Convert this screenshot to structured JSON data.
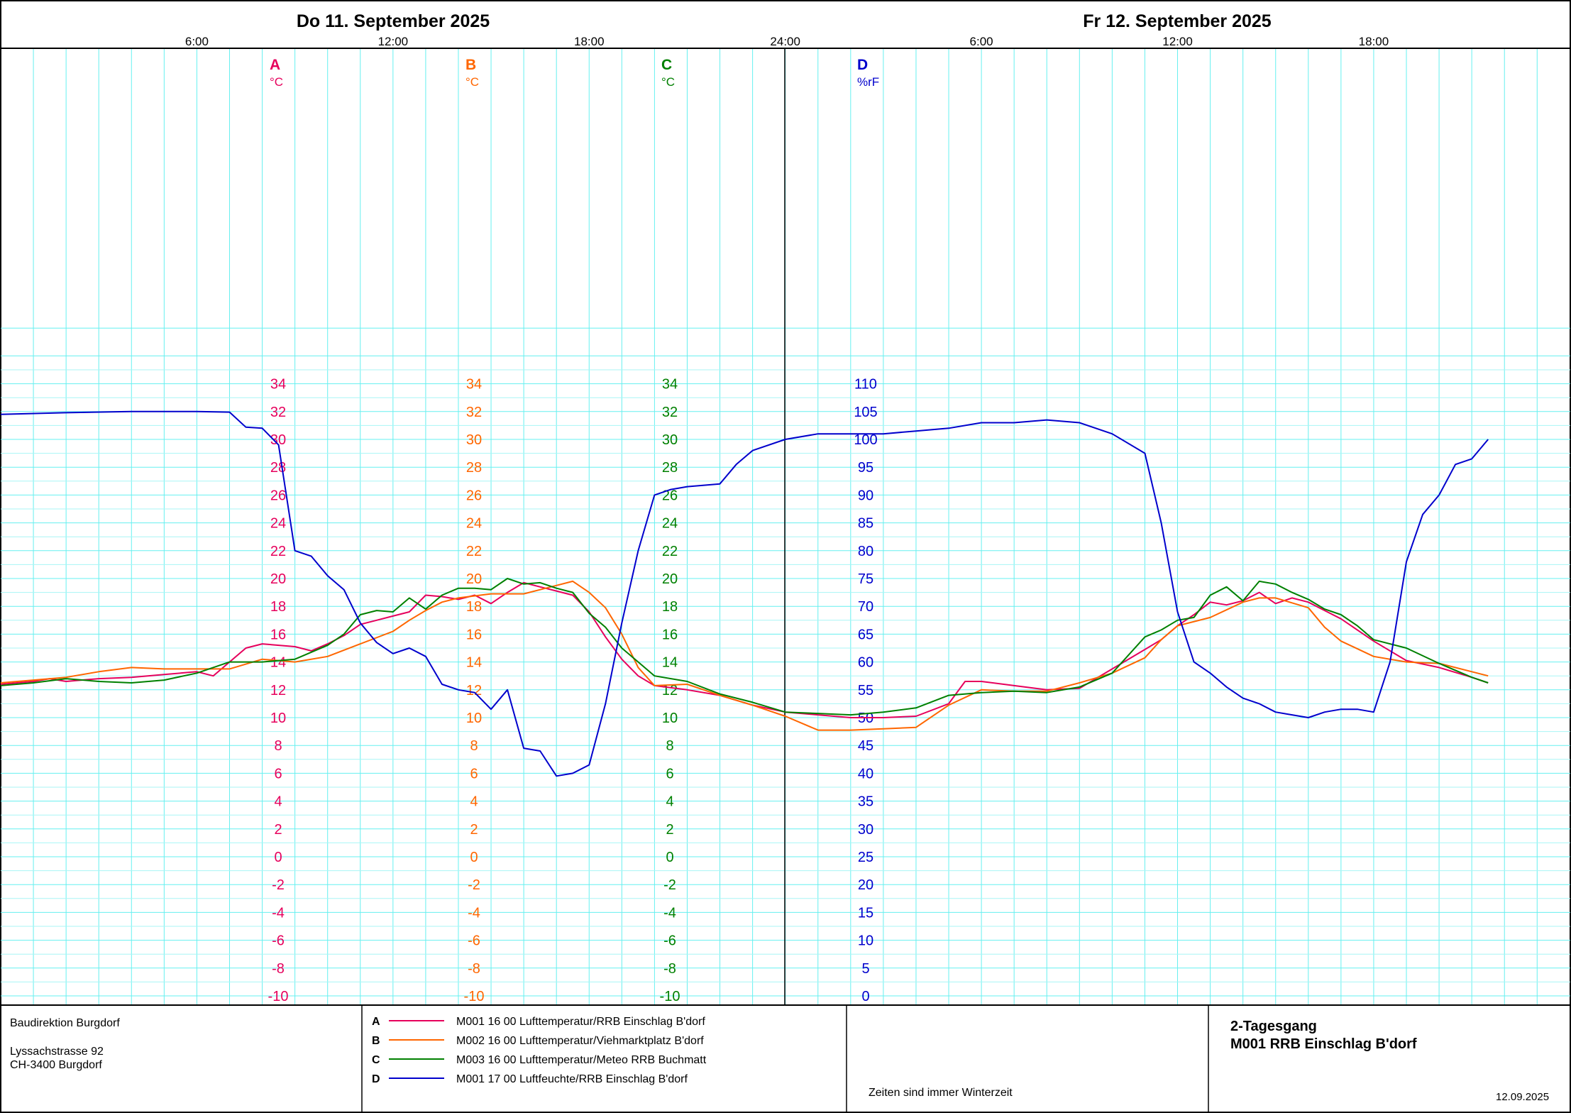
{
  "header": {
    "day1": "Do  11. September  2025",
    "day2": "Fr  12. September  2025",
    "time_ticks": [
      "6:00",
      "12:00",
      "18:00",
      "24:00",
      "6:00",
      "12:00",
      "18:00"
    ]
  },
  "axes": [
    {
      "letter": "A",
      "unit": "°C",
      "color": "#e6005c",
      "min": -10,
      "max": 34,
      "step": 2
    },
    {
      "letter": "B",
      "unit": "°C",
      "color": "#ff6600",
      "min": -10,
      "max": 34,
      "step": 2
    },
    {
      "letter": "C",
      "unit": "°C",
      "color": "#008000",
      "min": -10,
      "max": 34,
      "step": 2
    },
    {
      "letter": "D",
      "unit": "%rF",
      "color": "#0000cc",
      "min": 0,
      "max": 110,
      "step": 5
    }
  ],
  "chart_data": {
    "type": "line",
    "x_unit": "hours from 11.09.2025 00:00",
    "x_range": [
      0,
      48
    ],
    "series": [
      {
        "key": "A",
        "axis": "A",
        "color": "#e6005c",
        "points": [
          [
            0,
            12.4
          ],
          [
            1,
            12.6
          ],
          [
            1.5,
            12.8
          ],
          [
            2,
            12.6
          ],
          [
            3,
            12.8
          ],
          [
            4,
            12.9
          ],
          [
            5,
            13.1
          ],
          [
            6,
            13.3
          ],
          [
            6.5,
            13.0
          ],
          [
            7,
            14.0
          ],
          [
            7.5,
            15.0
          ],
          [
            8,
            15.3
          ],
          [
            9,
            15.1
          ],
          [
            9.5,
            14.8
          ],
          [
            10,
            15.3
          ],
          [
            10.5,
            15.9
          ],
          [
            11,
            16.7
          ],
          [
            11.5,
            17.0
          ],
          [
            12,
            17.3
          ],
          [
            12.5,
            17.6
          ],
          [
            13,
            18.8
          ],
          [
            13.5,
            18.7
          ],
          [
            14,
            18.5
          ],
          [
            14.5,
            18.8
          ],
          [
            15,
            18.2
          ],
          [
            15.5,
            19.0
          ],
          [
            16,
            19.7
          ],
          [
            16.5,
            19.4
          ],
          [
            17,
            19.1
          ],
          [
            17.5,
            18.8
          ],
          [
            18,
            17.6
          ],
          [
            18.5,
            15.8
          ],
          [
            19,
            14.2
          ],
          [
            19.5,
            13.0
          ],
          [
            20,
            12.3
          ],
          [
            21,
            12.0
          ],
          [
            22,
            11.6
          ],
          [
            23,
            10.9
          ],
          [
            24,
            10.4
          ],
          [
            25,
            10.2
          ],
          [
            26,
            10.0
          ],
          [
            27,
            10.0
          ],
          [
            28,
            10.1
          ],
          [
            29,
            11.0
          ],
          [
            29.5,
            12.6
          ],
          [
            30,
            12.6
          ],
          [
            31,
            12.3
          ],
          [
            32,
            12.0
          ],
          [
            33,
            12.1
          ],
          [
            34,
            13.5
          ],
          [
            35,
            14.9
          ],
          [
            35.5,
            15.6
          ],
          [
            36,
            16.6
          ],
          [
            36.5,
            17.4
          ],
          [
            37,
            18.3
          ],
          [
            37.5,
            18.1
          ],
          [
            38,
            18.4
          ],
          [
            38.5,
            19.0
          ],
          [
            39,
            18.2
          ],
          [
            39.5,
            18.6
          ],
          [
            40,
            18.3
          ],
          [
            40.5,
            17.7
          ],
          [
            41,
            17.1
          ],
          [
            42,
            15.5
          ],
          [
            43,
            14.1
          ],
          [
            44,
            13.6
          ],
          [
            45,
            12.9
          ],
          [
            45.5,
            12.5
          ]
        ]
      },
      {
        "key": "B",
        "axis": "B",
        "color": "#ff6600",
        "points": [
          [
            0,
            12.5
          ],
          [
            2,
            12.9
          ],
          [
            3,
            13.3
          ],
          [
            4,
            13.6
          ],
          [
            5,
            13.5
          ],
          [
            6,
            13.5
          ],
          [
            7,
            13.5
          ],
          [
            8,
            14.2
          ],
          [
            9,
            14.0
          ],
          [
            10,
            14.4
          ],
          [
            11,
            15.3
          ],
          [
            12,
            16.2
          ],
          [
            12.5,
            17.0
          ],
          [
            13,
            17.7
          ],
          [
            13.5,
            18.3
          ],
          [
            14,
            18.6
          ],
          [
            15,
            18.9
          ],
          [
            16,
            18.9
          ],
          [
            17,
            19.5
          ],
          [
            17.5,
            19.8
          ],
          [
            18,
            19.0
          ],
          [
            18.5,
            17.9
          ],
          [
            19,
            16.0
          ],
          [
            19.5,
            13.6
          ],
          [
            20,
            12.3
          ],
          [
            21,
            12.4
          ],
          [
            22,
            11.6
          ],
          [
            23,
            10.9
          ],
          [
            24,
            10.1
          ],
          [
            25,
            9.1
          ],
          [
            26,
            9.1
          ],
          [
            27,
            9.2
          ],
          [
            28,
            9.3
          ],
          [
            29,
            10.9
          ],
          [
            30,
            12.0
          ],
          [
            31,
            11.9
          ],
          [
            32,
            11.9
          ],
          [
            33,
            12.5
          ],
          [
            34,
            13.2
          ],
          [
            35,
            14.3
          ],
          [
            35.5,
            15.6
          ],
          [
            36,
            16.6
          ],
          [
            37,
            17.2
          ],
          [
            38,
            18.3
          ],
          [
            38.5,
            18.6
          ],
          [
            39,
            18.6
          ],
          [
            40,
            17.9
          ],
          [
            40.5,
            16.5
          ],
          [
            41,
            15.5
          ],
          [
            42,
            14.4
          ],
          [
            43,
            14.0
          ],
          [
            44,
            13.9
          ],
          [
            45,
            13.3
          ],
          [
            45.5,
            13.0
          ]
        ]
      },
      {
        "key": "C",
        "axis": "C",
        "color": "#008000",
        "points": [
          [
            0,
            12.3
          ],
          [
            1,
            12.5
          ],
          [
            2,
            12.8
          ],
          [
            3,
            12.6
          ],
          [
            4,
            12.5
          ],
          [
            5,
            12.7
          ],
          [
            6,
            13.2
          ],
          [
            7,
            14.0
          ],
          [
            8,
            14.0
          ],
          [
            9,
            14.2
          ],
          [
            10,
            15.2
          ],
          [
            10.5,
            16.0
          ],
          [
            11,
            17.4
          ],
          [
            11.5,
            17.7
          ],
          [
            12,
            17.6
          ],
          [
            12.5,
            18.6
          ],
          [
            13,
            17.8
          ],
          [
            13.5,
            18.8
          ],
          [
            14,
            19.3
          ],
          [
            14.5,
            19.3
          ],
          [
            15,
            19.2
          ],
          [
            15.5,
            20.0
          ],
          [
            16,
            19.6
          ],
          [
            16.5,
            19.7
          ],
          [
            17,
            19.3
          ],
          [
            17.5,
            19.0
          ],
          [
            18,
            17.5
          ],
          [
            18.5,
            16.5
          ],
          [
            19,
            15.0
          ],
          [
            19.5,
            14.0
          ],
          [
            20,
            13.0
          ],
          [
            21,
            12.6
          ],
          [
            22,
            11.7
          ],
          [
            23,
            11.1
          ],
          [
            24,
            10.4
          ],
          [
            25,
            10.3
          ],
          [
            26,
            10.2
          ],
          [
            27,
            10.4
          ],
          [
            28,
            10.7
          ],
          [
            29,
            11.6
          ],
          [
            30,
            11.8
          ],
          [
            31,
            11.9
          ],
          [
            32,
            11.8
          ],
          [
            33,
            12.2
          ],
          [
            34,
            13.2
          ],
          [
            35,
            15.8
          ],
          [
            35.5,
            16.3
          ],
          [
            36,
            17.0
          ],
          [
            36.5,
            17.2
          ],
          [
            37,
            18.8
          ],
          [
            37.5,
            19.4
          ],
          [
            38,
            18.4
          ],
          [
            38.5,
            19.8
          ],
          [
            39,
            19.6
          ],
          [
            39.5,
            19.0
          ],
          [
            40,
            18.5
          ],
          [
            40.5,
            17.8
          ],
          [
            41,
            17.4
          ],
          [
            41.5,
            16.6
          ],
          [
            42,
            15.6
          ],
          [
            43,
            15.0
          ],
          [
            44,
            13.9
          ],
          [
            45,
            12.9
          ],
          [
            45.5,
            12.5
          ]
        ]
      },
      {
        "key": "D",
        "axis": "D",
        "color": "#0000cc",
        "points": [
          [
            0,
            104.5
          ],
          [
            2,
            104.8
          ],
          [
            4,
            105.0
          ],
          [
            6,
            105.0
          ],
          [
            7,
            104.9
          ],
          [
            7.5,
            102.2
          ],
          [
            8,
            102.0
          ],
          [
            8.5,
            99.0
          ],
          [
            9,
            80.0
          ],
          [
            9.5,
            79.0
          ],
          [
            10,
            75.5
          ],
          [
            10.5,
            73.0
          ],
          [
            11,
            67.0
          ],
          [
            11.5,
            63.5
          ],
          [
            12,
            61.5
          ],
          [
            12.5,
            62.5
          ],
          [
            13,
            61.0
          ],
          [
            13.5,
            56.0
          ],
          [
            14,
            55.0
          ],
          [
            14.5,
            54.5
          ],
          [
            15,
            51.5
          ],
          [
            15.5,
            55.0
          ],
          [
            16,
            44.5
          ],
          [
            16.5,
            44.0
          ],
          [
            17,
            39.5
          ],
          [
            17.5,
            40.0
          ],
          [
            18,
            41.5
          ],
          [
            18.5,
            52.5
          ],
          [
            19,
            67.0
          ],
          [
            19.5,
            80.0
          ],
          [
            20,
            90.0
          ],
          [
            20.5,
            91.0
          ],
          [
            21,
            91.5
          ],
          [
            22,
            92.0
          ],
          [
            22.5,
            95.5
          ],
          [
            23,
            98.0
          ],
          [
            24,
            100.0
          ],
          [
            25,
            101.0
          ],
          [
            26,
            101.0
          ],
          [
            27,
            101.0
          ],
          [
            28,
            101.5
          ],
          [
            29,
            102.0
          ],
          [
            30,
            103.0
          ],
          [
            31,
            103.0
          ],
          [
            32,
            103.5
          ],
          [
            33,
            103.0
          ],
          [
            34,
            101.0
          ],
          [
            35,
            97.5
          ],
          [
            35.5,
            85.0
          ],
          [
            36,
            69.0
          ],
          [
            36.5,
            60.0
          ],
          [
            37,
            58.0
          ],
          [
            37.5,
            55.5
          ],
          [
            38,
            53.5
          ],
          [
            38.5,
            52.5
          ],
          [
            39,
            51.0
          ],
          [
            39.5,
            50.5
          ],
          [
            40,
            50.0
          ],
          [
            40.5,
            51.0
          ],
          [
            41,
            51.5
          ],
          [
            41.5,
            51.5
          ],
          [
            42,
            51.0
          ],
          [
            42.5,
            60.0
          ],
          [
            43,
            78.0
          ],
          [
            43.5,
            86.5
          ],
          [
            44,
            90.0
          ],
          [
            44.5,
            95.5
          ],
          [
            45,
            96.5
          ],
          [
            45.5,
            100.0
          ]
        ]
      }
    ]
  },
  "footer": {
    "org": "Baudirektion Burgdorf",
    "street": "Lyssachstrasse 92",
    "city": "CH-3400 Burgdorf",
    "legend": [
      {
        "letter": "A",
        "color": "#e6005c",
        "text": "M001 16 00  Lufttemperatur/RRB Einschlag B'dorf"
      },
      {
        "letter": "B",
        "color": "#ff6600",
        "text": "M002 16 00  Lufttemperatur/Viehmarktplatz B'dorf"
      },
      {
        "letter": "C",
        "color": "#008000",
        "text": "M003 16 00  Lufttemperatur/Meteo RRB Buchmatt"
      },
      {
        "letter": "D",
        "color": "#0000cc",
        "text": "M001 17 00  Luftfeuchte/RRB Einschlag B'dorf"
      }
    ],
    "note": "Zeiten sind immer Winterzeit",
    "title1": "2-Tagesgang",
    "title2": "M001 RRB Einschlag B'dorf",
    "date": "12.09.2025"
  }
}
